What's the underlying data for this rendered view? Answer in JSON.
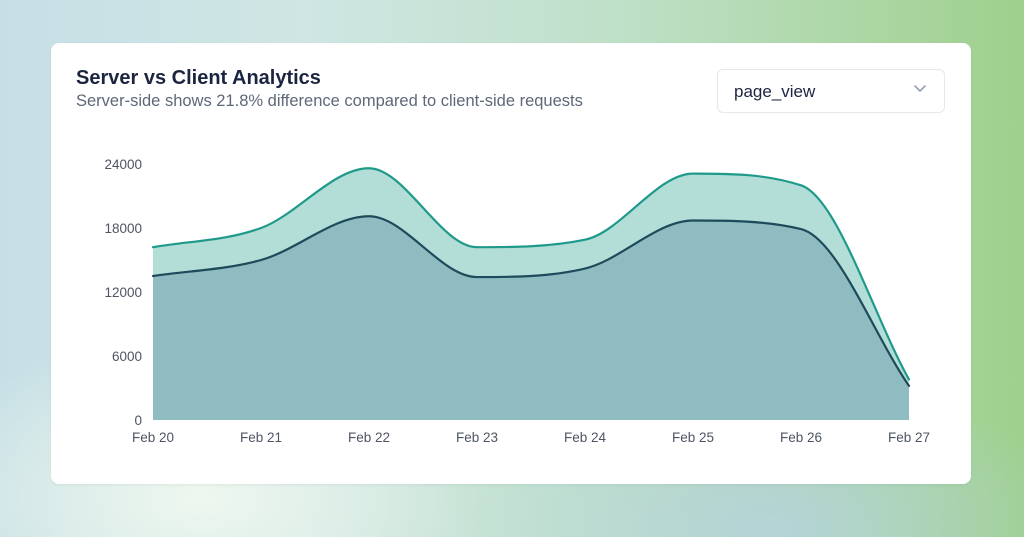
{
  "card": {
    "title": "Server vs Client Analytics",
    "subtitle": "Server-side shows 21.8% difference compared to client-side requests"
  },
  "event_select": {
    "value": "page_view",
    "icon": "chevron-down-icon"
  },
  "colors": {
    "server_line": "#1f9a8a",
    "server_fill": "#b3ded8",
    "client_line": "#1f4a5b",
    "client_fill": "#8fbcc0"
  },
  "chart_data": {
    "type": "area",
    "categories": [
      "Feb 20",
      "Feb 21",
      "Feb 22",
      "Feb 23",
      "Feb 24",
      "Feb 25",
      "Feb 26",
      "Feb 27"
    ],
    "series": [
      {
        "values": [
          16200,
          18000,
          23600,
          16200,
          16900,
          23100,
          22000,
          3800
        ]
      },
      {
        "values": [
          13500,
          15000,
          19100,
          13400,
          14200,
          18700,
          17900,
          3200
        ]
      }
    ],
    "ylim": [
      0,
      24000
    ],
    "yticks": [
      0,
      6000,
      12000,
      18000,
      24000
    ],
    "grid": false,
    "legend": "none"
  }
}
